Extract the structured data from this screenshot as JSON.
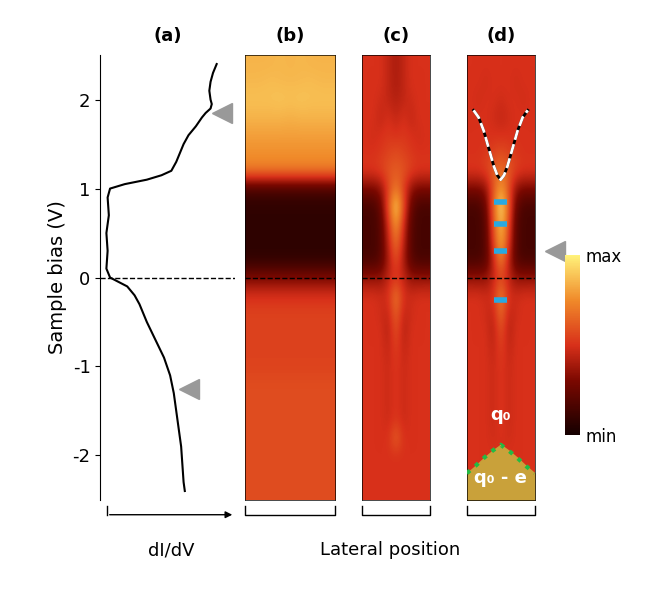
{
  "chart_data": [
    {
      "type": "line",
      "title": "(a)",
      "xlabel": "dI/dV",
      "ylabel": "Sample bias (V)",
      "tick_labels": "y",
      "color": "#000000",
      "reference_line": 0,
      "xlim": [
        0,
        1.1
      ],
      "ylim": [
        -2.5,
        2.5
      ],
      "yticks": [
        -2,
        -1,
        0,
        1,
        2
      ],
      "y": [
        2.4,
        2.3,
        2.2,
        2.1,
        2.0,
        1.95,
        1.9,
        1.85,
        1.8,
        1.7,
        1.6,
        1.5,
        1.4,
        1.3,
        1.2,
        1.15,
        1.1,
        1.05,
        1.0,
        0.9,
        0.7,
        0.5,
        0.3,
        0.1,
        0.0,
        -0.05,
        -0.1,
        -0.2,
        -0.3,
        -0.5,
        -0.7,
        -0.9,
        -1.1,
        -1.3,
        -1.5,
        -1.7,
        -1.9,
        -2.1,
        -2.3,
        -2.4
      ],
      "x": [
        0.95,
        0.92,
        0.9,
        0.89,
        0.9,
        0.91,
        0.9,
        0.86,
        0.83,
        0.78,
        0.72,
        0.68,
        0.65,
        0.62,
        0.58,
        0.5,
        0.38,
        0.2,
        0.08,
        0.06,
        0.07,
        0.05,
        0.06,
        0.05,
        0.08,
        0.15,
        0.22,
        0.28,
        0.32,
        0.38,
        0.45,
        0.52,
        0.57,
        0.6,
        0.62,
        0.64,
        0.66,
        0.67,
        0.68,
        0.69
      ],
      "marker_bias": [
        1.85,
        -1.25
      ]
    },
    {
      "type": "heatmap",
      "title": "(b)",
      "tick_labels": false,
      "reference_line": 0,
      "xlim": [
        -1,
        1
      ],
      "ylim": [
        -2.5,
        2.5
      ],
      "cells": [
        [
          0.85,
          0.85,
          0.85,
          0.86,
          0.85,
          0.86,
          0.85,
          0.85,
          0.85
        ],
        [
          0.86,
          0.86,
          0.87,
          0.86,
          0.86,
          0.86,
          0.87,
          0.86,
          0.86
        ],
        [
          0.88,
          0.88,
          0.88,
          0.89,
          0.88,
          0.89,
          0.88,
          0.88,
          0.88
        ],
        [
          0.85,
          0.85,
          0.85,
          0.85,
          0.84,
          0.85,
          0.85,
          0.85,
          0.85
        ],
        [
          0.8,
          0.8,
          0.8,
          0.8,
          0.8,
          0.8,
          0.8,
          0.8,
          0.8
        ],
        [
          0.76,
          0.76,
          0.76,
          0.76,
          0.76,
          0.76,
          0.76,
          0.76,
          0.76
        ],
        [
          0.72,
          0.72,
          0.72,
          0.72,
          0.72,
          0.72,
          0.72,
          0.72,
          0.72
        ],
        [
          0.15,
          0.15,
          0.15,
          0.15,
          0.15,
          0.15,
          0.15,
          0.15,
          0.15
        ],
        [
          0.08,
          0.08,
          0.08,
          0.08,
          0.08,
          0.08,
          0.08,
          0.08,
          0.08
        ],
        [
          0.08,
          0.08,
          0.08,
          0.08,
          0.08,
          0.08,
          0.08,
          0.08,
          0.08
        ],
        [
          0.08,
          0.08,
          0.08,
          0.08,
          0.08,
          0.08,
          0.08,
          0.08,
          0.08
        ],
        [
          0.08,
          0.08,
          0.08,
          0.08,
          0.08,
          0.08,
          0.08,
          0.08,
          0.08
        ],
        [
          0.3,
          0.3,
          0.3,
          0.3,
          0.3,
          0.3,
          0.3,
          0.3,
          0.3
        ],
        [
          0.5,
          0.5,
          0.5,
          0.5,
          0.5,
          0.5,
          0.5,
          0.5,
          0.5
        ],
        [
          0.55,
          0.55,
          0.55,
          0.55,
          0.55,
          0.55,
          0.55,
          0.55,
          0.55
        ],
        [
          0.55,
          0.55,
          0.55,
          0.55,
          0.55,
          0.55,
          0.55,
          0.55,
          0.55
        ],
        [
          0.55,
          0.55,
          0.55,
          0.55,
          0.55,
          0.55,
          0.55,
          0.55,
          0.55
        ],
        [
          0.55,
          0.55,
          0.55,
          0.55,
          0.55,
          0.55,
          0.55,
          0.55,
          0.55
        ],
        [
          0.58,
          0.58,
          0.58,
          0.58,
          0.58,
          0.58,
          0.58,
          0.58,
          0.58
        ],
        [
          0.58,
          0.58,
          0.58,
          0.58,
          0.58,
          0.58,
          0.58,
          0.58,
          0.58
        ],
        [
          0.58,
          0.58,
          0.58,
          0.58,
          0.58,
          0.58,
          0.58,
          0.58,
          0.58
        ],
        [
          0.58,
          0.58,
          0.58,
          0.58,
          0.58,
          0.58,
          0.58,
          0.58,
          0.58
        ],
        [
          0.58,
          0.58,
          0.58,
          0.58,
          0.58,
          0.58,
          0.58,
          0.58,
          0.58
        ],
        [
          0.58,
          0.58,
          0.58,
          0.58,
          0.58,
          0.58,
          0.58,
          0.58,
          0.58
        ],
        [
          0.58,
          0.58,
          0.58,
          0.58,
          0.58,
          0.58,
          0.58,
          0.58,
          0.58
        ]
      ]
    },
    {
      "type": "heatmap",
      "title": "(c)",
      "xlabel": "Lateral position",
      "tick_labels": false,
      "reference_line": 0,
      "xlim": [
        -1,
        1
      ],
      "ylim": [
        -2.5,
        2.5
      ],
      "cells": [
        [
          0.5,
          0.5,
          0.5,
          0.45,
          0.4,
          0.45,
          0.5,
          0.5,
          0.5
        ],
        [
          0.5,
          0.5,
          0.5,
          0.45,
          0.4,
          0.45,
          0.5,
          0.5,
          0.5
        ],
        [
          0.5,
          0.5,
          0.48,
          0.45,
          0.42,
          0.45,
          0.48,
          0.5,
          0.5
        ],
        [
          0.5,
          0.5,
          0.45,
          0.5,
          0.45,
          0.5,
          0.45,
          0.5,
          0.5
        ],
        [
          0.5,
          0.48,
          0.5,
          0.52,
          0.5,
          0.52,
          0.5,
          0.48,
          0.5
        ],
        [
          0.5,
          0.5,
          0.52,
          0.55,
          0.58,
          0.55,
          0.52,
          0.5,
          0.5
        ],
        [
          0.52,
          0.52,
          0.55,
          0.6,
          0.62,
          0.6,
          0.55,
          0.52,
          0.52
        ],
        [
          0.3,
          0.3,
          0.35,
          0.55,
          0.7,
          0.55,
          0.35,
          0.3,
          0.3
        ],
        [
          0.15,
          0.15,
          0.25,
          0.6,
          0.95,
          0.6,
          0.25,
          0.15,
          0.15
        ],
        [
          0.15,
          0.15,
          0.2,
          0.5,
          0.8,
          0.5,
          0.2,
          0.15,
          0.15
        ],
        [
          0.15,
          0.15,
          0.2,
          0.45,
          0.7,
          0.45,
          0.2,
          0.15,
          0.15
        ],
        [
          0.15,
          0.15,
          0.2,
          0.4,
          0.6,
          0.4,
          0.2,
          0.15,
          0.15
        ],
        [
          0.35,
          0.35,
          0.35,
          0.45,
          0.5,
          0.45,
          0.35,
          0.35,
          0.35
        ],
        [
          0.5,
          0.5,
          0.48,
          0.5,
          0.72,
          0.5,
          0.48,
          0.5,
          0.5
        ],
        [
          0.5,
          0.5,
          0.48,
          0.45,
          0.65,
          0.45,
          0.48,
          0.5,
          0.5
        ],
        [
          0.5,
          0.5,
          0.5,
          0.42,
          0.6,
          0.42,
          0.5,
          0.5,
          0.5
        ],
        [
          0.5,
          0.5,
          0.5,
          0.45,
          0.55,
          0.45,
          0.5,
          0.5,
          0.5
        ],
        [
          0.5,
          0.5,
          0.5,
          0.47,
          0.52,
          0.47,
          0.5,
          0.5,
          0.5
        ],
        [
          0.5,
          0.5,
          0.5,
          0.47,
          0.52,
          0.47,
          0.5,
          0.5,
          0.5
        ],
        [
          0.5,
          0.5,
          0.5,
          0.47,
          0.52,
          0.47,
          0.5,
          0.5,
          0.5
        ],
        [
          0.5,
          0.5,
          0.5,
          0.47,
          0.52,
          0.47,
          0.5,
          0.5,
          0.5
        ],
        [
          0.5,
          0.5,
          0.5,
          0.5,
          0.65,
          0.5,
          0.5,
          0.5,
          0.5
        ],
        [
          0.5,
          0.5,
          0.5,
          0.5,
          0.5,
          0.5,
          0.5,
          0.5,
          0.5
        ],
        [
          0.5,
          0.5,
          0.5,
          0.5,
          0.5,
          0.5,
          0.5,
          0.5,
          0.5
        ],
        [
          0.5,
          0.5,
          0.5,
          0.5,
          0.5,
          0.5,
          0.5,
          0.5,
          0.5
        ]
      ]
    },
    {
      "type": "heatmap",
      "title": "(d)",
      "tick_labels": false,
      "reference_line": 0,
      "xlim": [
        -1,
        1
      ],
      "ylim": [
        -2.5,
        2.5
      ],
      "cells": [
        [
          0.5,
          0.5,
          0.5,
          0.5,
          0.5,
          0.5,
          0.5,
          0.5,
          0.5
        ],
        [
          0.5,
          0.5,
          0.48,
          0.5,
          0.5,
          0.5,
          0.48,
          0.5,
          0.5
        ],
        [
          0.5,
          0.48,
          0.5,
          0.5,
          0.48,
          0.5,
          0.5,
          0.48,
          0.5
        ],
        [
          0.5,
          0.5,
          0.5,
          0.48,
          0.45,
          0.48,
          0.5,
          0.5,
          0.5
        ],
        [
          0.5,
          0.5,
          0.5,
          0.5,
          0.5,
          0.5,
          0.5,
          0.5,
          0.5
        ],
        [
          0.5,
          0.5,
          0.52,
          0.55,
          0.58,
          0.55,
          0.52,
          0.5,
          0.5
        ],
        [
          0.52,
          0.52,
          0.55,
          0.62,
          0.68,
          0.62,
          0.55,
          0.52,
          0.52
        ],
        [
          0.3,
          0.3,
          0.35,
          0.6,
          0.8,
          0.6,
          0.35,
          0.3,
          0.3
        ],
        [
          0.15,
          0.15,
          0.25,
          0.65,
          0.97,
          0.65,
          0.25,
          0.15,
          0.15
        ],
        [
          0.15,
          0.15,
          0.2,
          0.6,
          0.88,
          0.6,
          0.2,
          0.15,
          0.15
        ],
        [
          0.15,
          0.15,
          0.2,
          0.55,
          0.85,
          0.55,
          0.2,
          0.15,
          0.15
        ],
        [
          0.15,
          0.15,
          0.2,
          0.45,
          0.75,
          0.45,
          0.2,
          0.15,
          0.15
        ],
        [
          0.35,
          0.35,
          0.35,
          0.45,
          0.55,
          0.45,
          0.35,
          0.35,
          0.35
        ],
        [
          0.5,
          0.5,
          0.48,
          0.5,
          0.75,
          0.5,
          0.48,
          0.5,
          0.5
        ],
        [
          0.5,
          0.5,
          0.48,
          0.45,
          0.68,
          0.45,
          0.48,
          0.5,
          0.5
        ],
        [
          0.5,
          0.5,
          0.5,
          0.42,
          0.6,
          0.42,
          0.5,
          0.5,
          0.5
        ],
        [
          0.5,
          0.5,
          0.5,
          0.45,
          0.55,
          0.45,
          0.5,
          0.5,
          0.5
        ],
        [
          0.5,
          0.5,
          0.5,
          0.47,
          0.52,
          0.47,
          0.5,
          0.5,
          0.5
        ],
        [
          0.5,
          0.5,
          0.5,
          0.47,
          0.52,
          0.47,
          0.5,
          0.5,
          0.5
        ],
        [
          0.5,
          0.5,
          0.5,
          0.47,
          0.52,
          0.47,
          0.5,
          0.5,
          0.5
        ],
        [
          0.5,
          0.5,
          0.5,
          0.47,
          0.52,
          0.47,
          0.5,
          0.5,
          0.5
        ],
        [
          0.5,
          0.5,
          0.5,
          0.48,
          0.5,
          0.48,
          0.5,
          0.5,
          0.5
        ],
        [
          0.5,
          0.5,
          0.5,
          0.5,
          0.5,
          0.5,
          0.5,
          0.5,
          0.5
        ],
        [
          0.5,
          0.5,
          0.5,
          0.5,
          0.5,
          0.5,
          0.5,
          0.5,
          0.5
        ],
        [
          0.5,
          0.5,
          0.5,
          0.5,
          0.5,
          0.5,
          0.5,
          0.5,
          0.5
        ]
      ],
      "level_bias": [
        0.85,
        0.6,
        0.3,
        -0.25
      ],
      "marker_bias": [
        0.3
      ],
      "dashed_curve": {
        "x": [
          -0.8,
          -0.65,
          -0.5,
          -0.35,
          -0.2,
          -0.1,
          0,
          0.1,
          0.2,
          0.35,
          0.5,
          0.65,
          0.8
        ],
        "y": [
          1.88,
          1.8,
          1.65,
          1.45,
          1.25,
          1.15,
          1.1,
          1.15,
          1.25,
          1.45,
          1.65,
          1.8,
          1.88
        ]
      },
      "charge_boundary": {
        "x": [
          -1,
          -0.75,
          -0.5,
          -0.25,
          0,
          0.25,
          0.5,
          0.75,
          1
        ],
        "y": [
          -2.2,
          -2.12,
          -2.03,
          -1.95,
          -1.88,
          -1.95,
          -2.03,
          -2.12,
          -2.2
        ]
      },
      "annotations": [
        {
          "text": "q₀",
          "bias": -1.55
        },
        {
          "text": "q₀ - e",
          "bias": -2.25
        }
      ],
      "colorbar": {
        "range": [
          0,
          1
        ],
        "ticks": [
          {
            "value": 0,
            "label": "min"
          },
          {
            "value": 1,
            "label": "max"
          }
        ]
      }
    }
  ]
}
